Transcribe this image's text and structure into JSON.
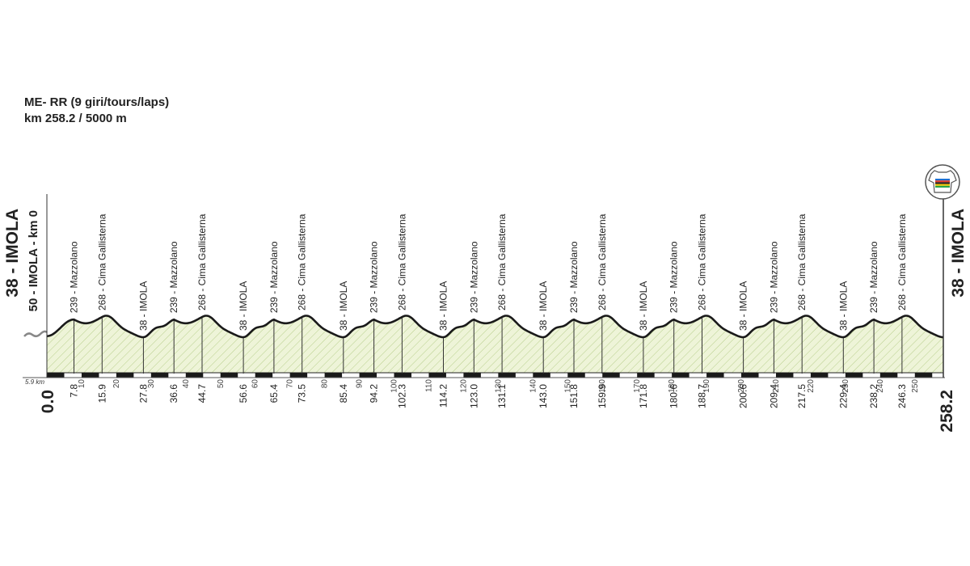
{
  "header": {
    "line1": "ME- RR  (9 giri/tours/laps)",
    "line2": "km 258.2 / 5000 m"
  },
  "start_label": "38 - IMOLA",
  "start_sub_label": "50 - IMOLA - km 0",
  "finish_label": "38 - IMOLA",
  "lap_offset_label": "5.9 km",
  "colors": {
    "fill": "#eef4d8",
    "hatch": "#b8cf8c",
    "profile_line": "#1a1a1a",
    "text": "#222222"
  },
  "finish_icon": "rainbow-jersey-icon",
  "chart_data": {
    "type": "area",
    "total_km": 258.2,
    "axis_ticks": [
      10,
      20,
      30,
      40,
      50,
      60,
      70,
      80,
      90,
      100,
      110,
      120,
      130,
      140,
      150,
      160,
      170,
      180,
      190,
      200,
      210,
      220,
      230,
      240,
      250
    ],
    "waypoints": [
      {
        "km": 0.0,
        "label": "",
        "km_label": "0.0",
        "elev": 50
      },
      {
        "km": 7.8,
        "label": "239 - Mazzolano",
        "km_label": "7.8",
        "elev": 239
      },
      {
        "km": 15.9,
        "label": "268 - Cima Gallisterna",
        "km_label": "15.9",
        "elev": 268
      },
      {
        "km": 27.8,
        "label": "38 - IMOLA",
        "km_label": "27.8",
        "elev": 38
      },
      {
        "km": 36.6,
        "label": "239 - Mazzolano",
        "km_label": "36.6",
        "elev": 239
      },
      {
        "km": 44.7,
        "label": "268 - Cima Gallisterna",
        "km_label": "44.7",
        "elev": 268
      },
      {
        "km": 56.6,
        "label": "38 - IMOLA",
        "km_label": "56.6",
        "elev": 38
      },
      {
        "km": 65.4,
        "label": "239 - Mazzolano",
        "km_label": "65.4",
        "elev": 239
      },
      {
        "km": 73.5,
        "label": "268 - Cima Gallisterna",
        "km_label": "73.5",
        "elev": 268
      },
      {
        "km": 85.4,
        "label": "38 - IMOLA",
        "km_label": "85.4",
        "elev": 38
      },
      {
        "km": 94.2,
        "label": "239 - Mazzolano",
        "km_label": "94.2",
        "elev": 239
      },
      {
        "km": 102.3,
        "label": "268 - Cima Gallisterna",
        "km_label": "102.3",
        "elev": 268
      },
      {
        "km": 114.2,
        "label": "38 - IMOLA",
        "km_label": "114.2",
        "elev": 38
      },
      {
        "km": 123.0,
        "label": "239 - Mazzolano",
        "km_label": "123.0",
        "elev": 239
      },
      {
        "km": 131.1,
        "label": "268 - Cima Gallisterna",
        "km_label": "131.1",
        "elev": 268
      },
      {
        "km": 143.0,
        "label": "38 - IMOLA",
        "km_label": "143.0",
        "elev": 38
      },
      {
        "km": 151.8,
        "label": "239 - Mazzolano",
        "km_label": "151.8",
        "elev": 239
      },
      {
        "km": 159.9,
        "label": "268 - Cima Gallisterna",
        "km_label": "159.9",
        "elev": 268
      },
      {
        "km": 171.8,
        "label": "38 - IMOLA",
        "km_label": "171.8",
        "elev": 38
      },
      {
        "km": 180.6,
        "label": "239 - Mazzolano",
        "km_label": "180.6",
        "elev": 239
      },
      {
        "km": 188.7,
        "label": "268 - Cima Gallisterna",
        "km_label": "188.7",
        "elev": 268
      },
      {
        "km": 200.6,
        "label": "38 - IMOLA",
        "km_label": "200.6",
        "elev": 38
      },
      {
        "km": 209.4,
        "label": "239 - Mazzolano",
        "km_label": "209.4",
        "elev": 239
      },
      {
        "km": 217.5,
        "label": "268 - Cima Gallisterna",
        "km_label": "217.5",
        "elev": 268
      },
      {
        "km": 229.4,
        "label": "38 - IMOLA",
        "km_label": "229.4",
        "elev": 38
      },
      {
        "km": 238.2,
        "label": "239 - Mazzolano",
        "km_label": "238.2",
        "elev": 239
      },
      {
        "km": 246.3,
        "label": "268 - Cima Gallisterna",
        "km_label": "246.3",
        "elev": 268
      },
      {
        "km": 258.2,
        "label": "",
        "km_label": "258.2",
        "elev": 38
      }
    ]
  }
}
